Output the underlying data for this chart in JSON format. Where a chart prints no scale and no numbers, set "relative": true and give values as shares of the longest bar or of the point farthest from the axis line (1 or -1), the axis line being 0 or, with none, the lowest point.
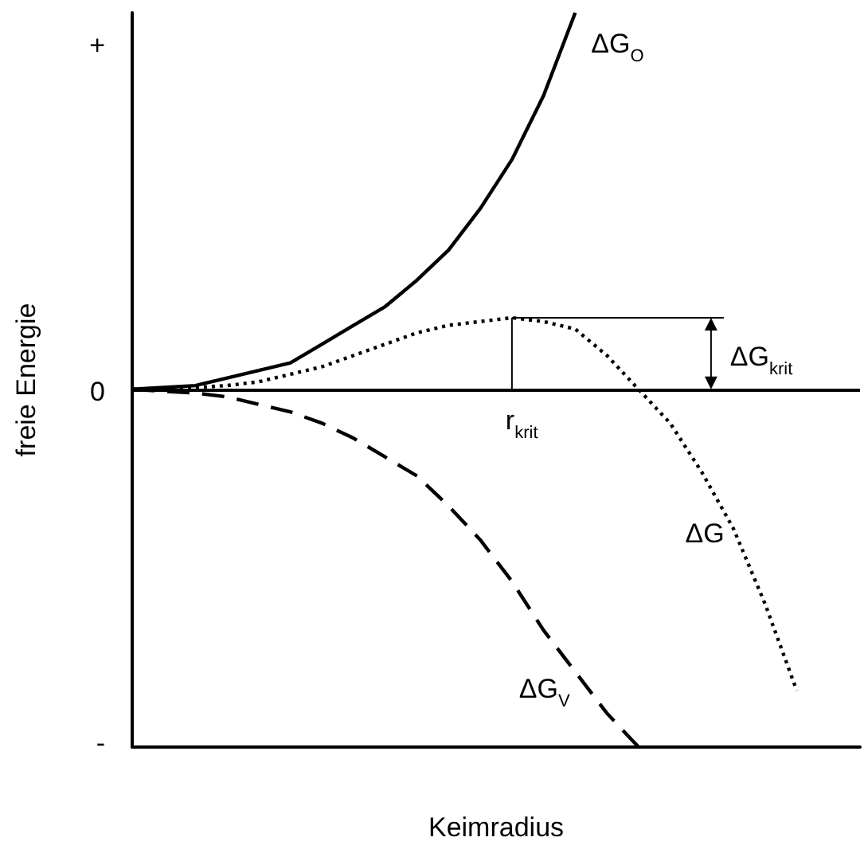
{
  "chart_data": {
    "type": "line",
    "xlabel": "Keimradius",
    "ylabel": "freie Energie",
    "relative": true,
    "categories": [
      null,
      null,
      null,
      null,
      null,
      null,
      null,
      null,
      null,
      null,
      null,
      null,
      null,
      null,
      null,
      null,
      null,
      null,
      null,
      null,
      null,
      null,
      null,
      null
    ],
    "series": [
      {
        "name": "ΔG$_{O}$",
        "color": "#000000",
        "line_style": "solid",
        "values": [
          0,
          0.005,
          0.01,
          0.03,
          0.05,
          0.07,
          0.12,
          0.17,
          0.22,
          0.29,
          0.37,
          0.48,
          0.61,
          0.78,
          1,
          null,
          null,
          null,
          null,
          null,
          null,
          null,
          null,
          null
        ]
      },
      {
        "name": "ΔG$_{V}$",
        "color": "#000000",
        "line_style": "dashed",
        "values": [
          0,
          -0.005,
          -0.01,
          -0.02,
          -0.04,
          -0.06,
          -0.09,
          -0.13,
          -0.18,
          -0.23,
          -0.31,
          -0.4,
          -0.51,
          -0.64,
          -0.75,
          -0.86,
          -0.95,
          null,
          null,
          null,
          null,
          null,
          null,
          null
        ]
      },
      {
        "name": "ΔG",
        "color": "#000000",
        "line_style": "dotted",
        "values": [
          0,
          0,
          0.005,
          0.01,
          0.02,
          0.04,
          0.06,
          0.09,
          0.12,
          0.15,
          0.17,
          0.18,
          0.19,
          0.18,
          0.16,
          0.09,
          0,
          -0.09,
          -0.22,
          -0.37,
          -0.57,
          -0.8,
          null,
          null
        ]
      }
    ],
    "ref_lines": [
      {
        "axis": "y",
        "value": 0,
        "color": "#000000"
      }
    ],
    "annotations": [
      "ΔG$_{krit}$",
      "r$_{krit}$",
      "+",
      "0",
      "-"
    ],
    "marker": "none",
    "grid": false,
    "legend": false
  }
}
